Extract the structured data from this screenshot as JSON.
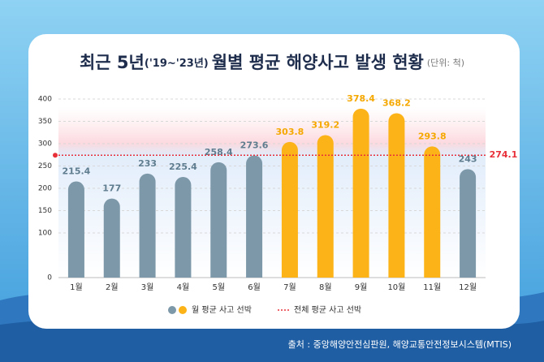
{
  "chart_data": {
    "type": "bar",
    "title": [
      "최근 5년",
      "('19~'23년)",
      "월별 평균 해양사고 발생 현황"
    ],
    "unit": "(단위: 척)",
    "categories": [
      "1월",
      "2월",
      "3월",
      "4월",
      "5월",
      "6월",
      "7월",
      "8월",
      "9월",
      "10월",
      "11월",
      "12월"
    ],
    "series": [
      {
        "name": "월 평균 사고 선박",
        "values": [
          215.4,
          177,
          233,
          225.4,
          258.4,
          273.6,
          303.8,
          319.2,
          378.4,
          368.2,
          293.8,
          243
        ],
        "colors": [
          "#7c98a9",
          "#7c98a9",
          "#7c98a9",
          "#7c98a9",
          "#7c98a9",
          "#7c98a9",
          "#fbb317",
          "#fbb317",
          "#fbb317",
          "#fbb317",
          "#fbb317",
          "#7c98a9"
        ]
      }
    ],
    "average": {
      "name": "전체 평균 사고 선박",
      "value": 274.1,
      "color": "#e8303a"
    },
    "ylim": [
      0,
      400
    ],
    "yticks": [
      0,
      100,
      150,
      200,
      250,
      300,
      350,
      400
    ],
    "grid": true,
    "source": "출처 : 중앙해양안전심판원, 해양교통안전정보시스템(MTIS)"
  }
}
